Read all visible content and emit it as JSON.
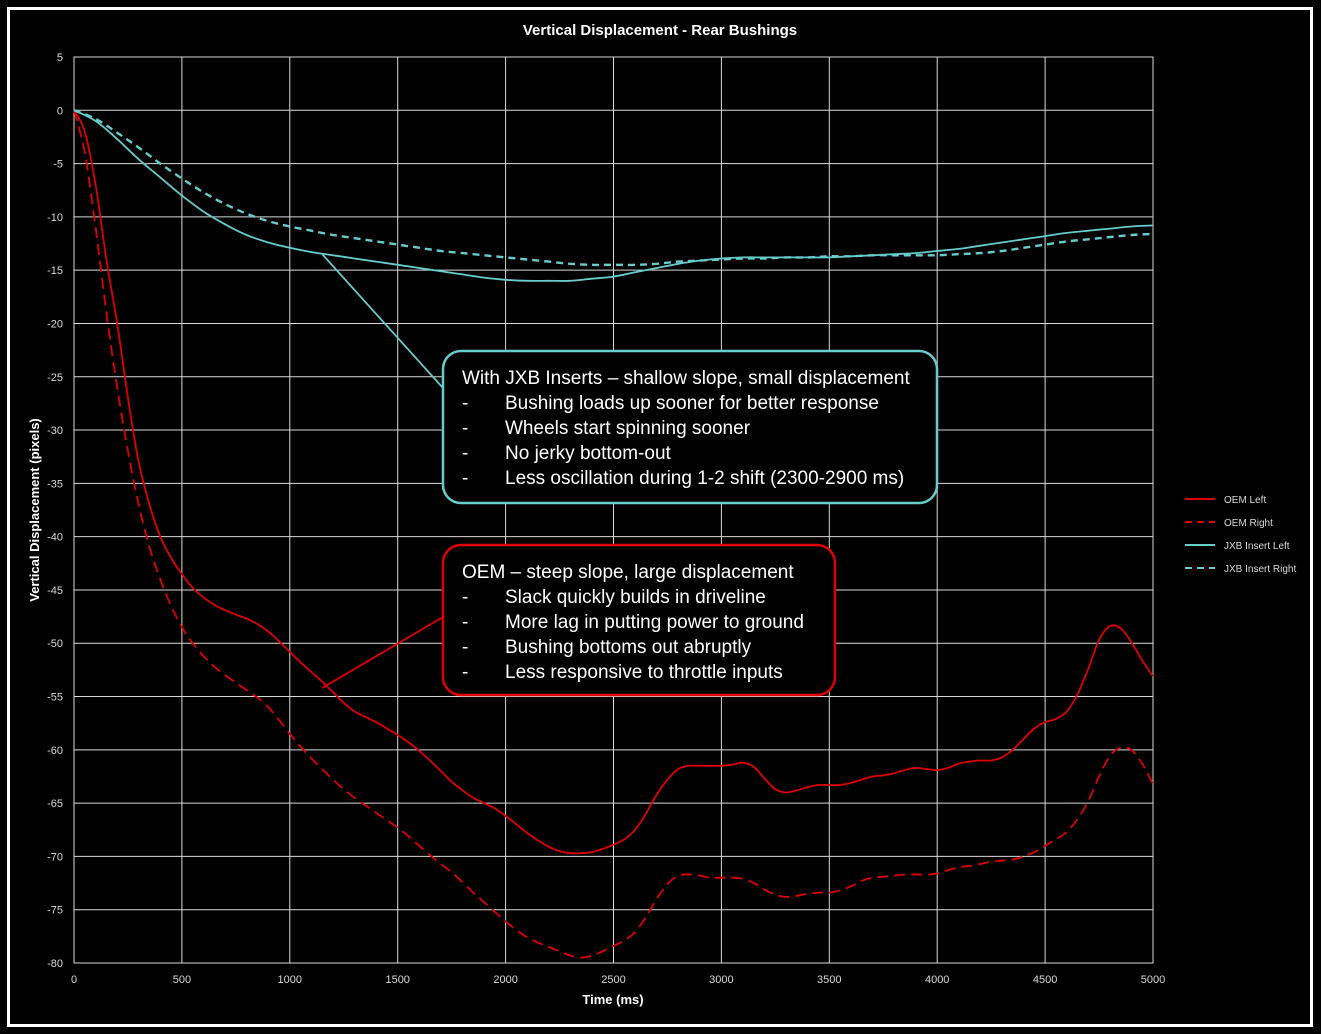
{
  "chart_data": {
    "type": "line",
    "title": "Vertical Displacement - Rear Bushings",
    "xlabel": "Time (ms)",
    "ylabel": "Vertical Displacement (pixels)",
    "xlim": [
      0,
      5000
    ],
    "ylim": [
      -80,
      5
    ],
    "xticks": [
      "0",
      "500",
      "1000",
      "1500",
      "2000",
      "2500",
      "3000",
      "3500",
      "4000",
      "4500",
      "5000"
    ],
    "yticks": [
      "5",
      "0",
      "-5",
      "-10",
      "-15",
      "-20",
      "-25",
      "-30",
      "-35",
      "-40",
      "-45",
      "-50",
      "-55",
      "-60",
      "-65",
      "-70",
      "-75",
      "-80"
    ],
    "grid": true,
    "legend_position": "right",
    "series": [
      {
        "name": "OEM Left",
        "color": "#e00000",
        "dash": "solid",
        "x": [
          0,
          50,
          100,
          150,
          200,
          250,
          300,
          350,
          400,
          450,
          500,
          550,
          600,
          650,
          700,
          750,
          800,
          850,
          900,
          950,
          1000,
          1050,
          1100,
          1150,
          1200,
          1250,
          1300,
          1350,
          1400,
          1450,
          1500,
          1550,
          1600,
          1650,
          1700,
          1750,
          1800,
          1850,
          1900,
          1950,
          2000,
          2050,
          2100,
          2150,
          2200,
          2250,
          2300,
          2350,
          2400,
          2450,
          2500,
          2550,
          2600,
          2650,
          2700,
          2750,
          2800,
          2850,
          2900,
          2950,
          3000,
          3050,
          3100,
          3150,
          3200,
          3250,
          3300,
          3350,
          3400,
          3450,
          3500,
          3550,
          3600,
          3650,
          3700,
          3750,
          3800,
          3850,
          3900,
          3950,
          4000,
          4050,
          4100,
          4150,
          4200,
          4250,
          4300,
          4350,
          4400,
          4450,
          4500,
          4550,
          4600,
          4650,
          4700,
          4750,
          4800,
          4850,
          4900,
          4950,
          5000
        ],
        "y": [
          0,
          -2,
          -7,
          -14,
          -20,
          -27,
          -33,
          -37,
          -40,
          -42,
          -43.5,
          -44.8,
          -45.7,
          -46.4,
          -46.9,
          -47.3,
          -47.7,
          -48.2,
          -48.9,
          -49.8,
          -50.8,
          -51.8,
          -52.7,
          -53.6,
          -54.6,
          -55.6,
          -56.4,
          -56.9,
          -57.4,
          -58.0,
          -58.6,
          -59.3,
          -60.1,
          -61.0,
          -62.0,
          -63.0,
          -63.8,
          -64.5,
          -65.0,
          -65.5,
          -66.2,
          -67.0,
          -67.8,
          -68.5,
          -69.1,
          -69.5,
          -69.7,
          -69.7,
          -69.6,
          -69.3,
          -68.9,
          -68.4,
          -67.5,
          -66.0,
          -64.2,
          -62.8,
          -61.8,
          -61.5,
          -61.5,
          -61.5,
          -61.5,
          -61.4,
          -61.2,
          -61.6,
          -62.7,
          -63.7,
          -64.0,
          -63.8,
          -63.5,
          -63.3,
          -63.3,
          -63.3,
          -63.1,
          -62.8,
          -62.5,
          -62.4,
          -62.2,
          -61.9,
          -61.7,
          -61.8,
          -61.9,
          -61.7,
          -61.3,
          -61.1,
          -61.0,
          -61.0,
          -60.7,
          -60.0,
          -59.0,
          -58.0,
          -57.4,
          -57.1,
          -56.4,
          -54.8,
          -52.4,
          -49.7,
          -48.4,
          -48.6,
          -49.9,
          -51.6,
          -53.1
        ]
      },
      {
        "name": "OEM Right",
        "color": "#e00000",
        "dash": "dashed",
        "x": [
          0,
          50,
          100,
          150,
          200,
          250,
          300,
          350,
          400,
          450,
          500,
          550,
          600,
          650,
          700,
          750,
          800,
          850,
          900,
          950,
          1000,
          1050,
          1100,
          1150,
          1200,
          1250,
          1300,
          1350,
          1400,
          1450,
          1500,
          1550,
          1600,
          1650,
          1700,
          1750,
          1800,
          1850,
          1900,
          1950,
          2000,
          2050,
          2100,
          2150,
          2200,
          2250,
          2300,
          2350,
          2400,
          2450,
          2500,
          2550,
          2600,
          2650,
          2700,
          2750,
          2800,
          2850,
          2900,
          2950,
          3000,
          3050,
          3100,
          3150,
          3200,
          3250,
          3300,
          3350,
          3400,
          3450,
          3500,
          3550,
          3600,
          3650,
          3700,
          3750,
          3800,
          3850,
          3900,
          3950,
          4000,
          4050,
          4100,
          4150,
          4200,
          4250,
          4300,
          4350,
          4400,
          4450,
          4500,
          4550,
          4600,
          4650,
          4700,
          4750,
          4800,
          4850,
          4900,
          4950,
          5000
        ],
        "y": [
          0,
          -4,
          -11,
          -19,
          -26,
          -32,
          -37,
          -41,
          -44,
          -46.5,
          -48.5,
          -50,
          -51.2,
          -52.2,
          -53.0,
          -53.7,
          -54.4,
          -55.1,
          -56.0,
          -57.2,
          -58.5,
          -59.7,
          -60.8,
          -61.8,
          -62.8,
          -63.7,
          -64.5,
          -65.2,
          -65.9,
          -66.6,
          -67.3,
          -68.1,
          -69.0,
          -69.9,
          -70.7,
          -71.5,
          -72.4,
          -73.4,
          -74.3,
          -75.2,
          -76.1,
          -76.9,
          -77.6,
          -78.1,
          -78.5,
          -78.9,
          -79.3,
          -79.5,
          -79.3,
          -78.9,
          -78.4,
          -77.9,
          -77.1,
          -75.7,
          -74.0,
          -72.6,
          -71.8,
          -71.7,
          -71.8,
          -72.0,
          -72.0,
          -72.0,
          -72.1,
          -72.5,
          -73.1,
          -73.6,
          -73.8,
          -73.7,
          -73.5,
          -73.4,
          -73.4,
          -73.2,
          -72.8,
          -72.3,
          -72.0,
          -71.9,
          -71.8,
          -71.7,
          -71.7,
          -71.7,
          -71.6,
          -71.3,
          -71.0,
          -70.9,
          -70.7,
          -70.5,
          -70.4,
          -70.3,
          -70.0,
          -69.6,
          -69.0,
          -68.4,
          -67.7,
          -66.5,
          -64.8,
          -62.5,
          -60.6,
          -59.8,
          -60.0,
          -61.3,
          -63.2
        ]
      },
      {
        "name": "JXB Insert Left",
        "color": "#66cccc",
        "dash": "solid",
        "x": [
          0,
          100,
          200,
          300,
          400,
          500,
          600,
          700,
          800,
          900,
          1000,
          1100,
          1200,
          1300,
          1400,
          1500,
          1600,
          1700,
          1800,
          1900,
          2000,
          2100,
          2200,
          2300,
          2400,
          2500,
          2600,
          2700,
          2800,
          2900,
          3000,
          3100,
          3200,
          3300,
          3400,
          3500,
          3600,
          3700,
          3800,
          3900,
          4000,
          4100,
          4200,
          4300,
          4400,
          4500,
          4600,
          4700,
          4800,
          4900,
          5000
        ],
        "y": [
          0,
          -1,
          -2.7,
          -4.6,
          -6.3,
          -8.0,
          -9.5,
          -10.7,
          -11.7,
          -12.4,
          -12.9,
          -13.3,
          -13.6,
          -13.9,
          -14.2,
          -14.5,
          -14.8,
          -15.1,
          -15.4,
          -15.7,
          -15.9,
          -16.0,
          -16.0,
          -16.0,
          -15.8,
          -15.6,
          -15.2,
          -14.8,
          -14.4,
          -14.1,
          -13.9,
          -13.8,
          -13.8,
          -13.8,
          -13.8,
          -13.8,
          -13.7,
          -13.6,
          -13.5,
          -13.4,
          -13.2,
          -13.0,
          -12.7,
          -12.4,
          -12.1,
          -11.8,
          -11.5,
          -11.3,
          -11.1,
          -10.9,
          -10.8
        ]
      },
      {
        "name": "JXB Insert Right",
        "color": "#66cccc",
        "dash": "dashed",
        "x": [
          0,
          100,
          200,
          300,
          400,
          500,
          600,
          700,
          800,
          900,
          1000,
          1100,
          1200,
          1300,
          1400,
          1500,
          1600,
          1700,
          1800,
          1900,
          2000,
          2100,
          2200,
          2300,
          2400,
          2500,
          2600,
          2700,
          2800,
          2900,
          3000,
          3100,
          3200,
          3300,
          3400,
          3500,
          3600,
          3700,
          3800,
          3900,
          4000,
          4100,
          4200,
          4300,
          4400,
          4500,
          4600,
          4700,
          4800,
          4900,
          5000
        ],
        "y": [
          0,
          -0.8,
          -2.1,
          -3.5,
          -5.0,
          -6.4,
          -7.7,
          -8.8,
          -9.7,
          -10.4,
          -10.9,
          -11.3,
          -11.7,
          -12.0,
          -12.3,
          -12.6,
          -12.9,
          -13.2,
          -13.4,
          -13.6,
          -13.8,
          -14.0,
          -14.2,
          -14.4,
          -14.5,
          -14.5,
          -14.5,
          -14.4,
          -14.2,
          -14.1,
          -14.0,
          -13.9,
          -13.9,
          -13.8,
          -13.8,
          -13.7,
          -13.7,
          -13.6,
          -13.6,
          -13.6,
          -13.6,
          -13.5,
          -13.4,
          -13.2,
          -12.9,
          -12.6,
          -12.3,
          -12.1,
          -11.9,
          -11.7,
          -11.6
        ]
      }
    ],
    "annotations": [
      {
        "border_color": "#66cccc",
        "heading": "With JXB Inserts – shallow slope, small displacement",
        "bullets": [
          "Bushing loads up sooner for better response",
          "Wheels start spinning sooner",
          "No jerky bottom-out",
          "Less oscillation during 1-2 shift (2300-2900 ms)"
        ],
        "pointer_to": {
          "x": 1150,
          "y": -13.5
        }
      },
      {
        "border_color": "#e00000",
        "heading": "OEM – steep slope, large displacement",
        "bullets": [
          "Slack quickly builds in driveline",
          "More lag in putting power to ground",
          "Bushing bottoms out abruptly",
          "Less responsive to throttle inputs"
        ],
        "pointer_to": {
          "x": 1150,
          "y": -54.2
        }
      }
    ],
    "bullet_marker": "-"
  }
}
